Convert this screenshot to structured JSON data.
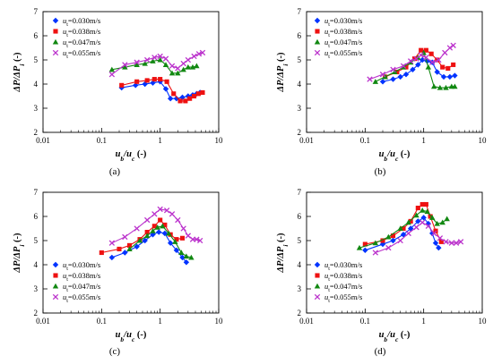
{
  "legend_labels": [
    "ut=0.030m/s",
    "ut=0.038m/s",
    "ut=0.047m/s",
    "ut=0.055m/s"
  ],
  "series_style": [
    {
      "color": "#0033ff",
      "marker": "diamond"
    },
    {
      "color": "#ee1111",
      "marker": "square"
    },
    {
      "color": "#118811",
      "marker": "triangle"
    },
    {
      "color": "#bb33cc",
      "marker": "x"
    }
  ],
  "axes": {
    "xlabel": "ub/uc (-)",
    "ylabel": "ΔP/ΔPi (-)",
    "x_scale": "log",
    "xlim": [
      0.01,
      10
    ],
    "ylim": [
      2,
      7
    ],
    "x_ticks": [
      "0.01",
      "0.1",
      "1",
      "10"
    ],
    "y_ticks": [
      "2",
      "3",
      "4",
      "5",
      "6",
      "7"
    ],
    "grid": false
  },
  "chart_data": [
    {
      "type": "line",
      "caption": "(a)",
      "legend_position": "top-left",
      "xlabel": "ub/uc (-)",
      "ylabel": "ΔP/ΔPi (-)",
      "series": [
        {
          "name": "ut=0.030m/s",
          "points": [
            [
              0.22,
              3.85
            ],
            [
              0.38,
              3.95
            ],
            [
              0.55,
              4.0
            ],
            [
              0.75,
              4.05
            ],
            [
              1.0,
              4.1
            ],
            [
              1.25,
              3.8
            ],
            [
              1.5,
              3.4
            ],
            [
              1.9,
              3.4
            ],
            [
              2.4,
              3.45
            ],
            [
              3.0,
              3.5
            ],
            [
              3.6,
              3.55
            ],
            [
              4.2,
              3.6
            ],
            [
              4.8,
              3.65
            ]
          ]
        },
        {
          "name": "ut=0.038m/s",
          "points": [
            [
              0.22,
              3.95
            ],
            [
              0.4,
              4.1
            ],
            [
              0.6,
              4.15
            ],
            [
              0.8,
              4.2
            ],
            [
              1.0,
              4.2
            ],
            [
              1.3,
              4.1
            ],
            [
              1.7,
              3.6
            ],
            [
              2.2,
              3.3
            ],
            [
              2.7,
              3.3
            ],
            [
              3.2,
              3.4
            ],
            [
              3.8,
              3.5
            ],
            [
              4.5,
              3.6
            ],
            [
              5.3,
              3.65
            ]
          ]
        },
        {
          "name": "ut=0.047m/s",
          "points": [
            [
              0.15,
              4.6
            ],
            [
              0.25,
              4.7
            ],
            [
              0.4,
              4.8
            ],
            [
              0.55,
              4.85
            ],
            [
              0.75,
              4.95
            ],
            [
              1.0,
              5.0
            ],
            [
              1.25,
              4.8
            ],
            [
              1.6,
              4.45
            ],
            [
              2.0,
              4.45
            ],
            [
              2.5,
              4.6
            ],
            [
              3.0,
              4.7
            ],
            [
              3.6,
              4.7
            ],
            [
              4.2,
              4.75
            ]
          ]
        },
        {
          "name": "ut=0.055m/s",
          "points": [
            [
              0.15,
              4.4
            ],
            [
              0.25,
              4.8
            ],
            [
              0.4,
              4.9
            ],
            [
              0.6,
              5.0
            ],
            [
              0.8,
              5.1
            ],
            [
              1.0,
              5.15
            ],
            [
              1.25,
              5.05
            ],
            [
              1.6,
              4.75
            ],
            [
              2.0,
              4.65
            ],
            [
              2.5,
              4.85
            ],
            [
              3.0,
              5.0
            ],
            [
              3.8,
              5.15
            ],
            [
              4.6,
              5.25
            ],
            [
              5.3,
              5.3
            ]
          ]
        }
      ]
    },
    {
      "type": "line",
      "caption": "(b)",
      "legend_position": "top-left",
      "xlabel": "ub/uc (-)",
      "ylabel": "ΔP/ΔPi (-)",
      "series": [
        {
          "name": "ut=0.030m/s",
          "points": [
            [
              0.2,
              4.1
            ],
            [
              0.3,
              4.2
            ],
            [
              0.4,
              4.3
            ],
            [
              0.5,
              4.4
            ],
            [
              0.65,
              4.6
            ],
            [
              0.8,
              4.8
            ],
            [
              0.95,
              5.0
            ],
            [
              1.15,
              4.95
            ],
            [
              1.4,
              4.9
            ],
            [
              1.7,
              4.5
            ],
            [
              2.2,
              4.3
            ],
            [
              2.8,
              4.3
            ],
            [
              3.4,
              4.35
            ]
          ]
        },
        {
          "name": "ut=0.038m/s",
          "points": [
            [
              0.22,
              4.3
            ],
            [
              0.35,
              4.5
            ],
            [
              0.5,
              4.7
            ],
            [
              0.7,
              5.05
            ],
            [
              0.9,
              5.4
            ],
            [
              1.1,
              5.4
            ],
            [
              1.35,
              5.25
            ],
            [
              1.7,
              5.0
            ],
            [
              2.1,
              4.7
            ],
            [
              2.6,
              4.65
            ],
            [
              3.2,
              4.8
            ]
          ]
        },
        {
          "name": "ut=0.047m/s",
          "points": [
            [
              0.15,
              4.1
            ],
            [
              0.22,
              4.3
            ],
            [
              0.32,
              4.5
            ],
            [
              0.45,
              4.7
            ],
            [
              0.6,
              4.9
            ],
            [
              0.8,
              5.1
            ],
            [
              1.0,
              5.3
            ],
            [
              1.2,
              4.7
            ],
            [
              1.5,
              3.9
            ],
            [
              1.9,
              3.85
            ],
            [
              2.4,
              3.85
            ],
            [
              3.0,
              3.9
            ],
            [
              3.4,
              3.9
            ]
          ]
        },
        {
          "name": "ut=0.055m/s",
          "points": [
            [
              0.12,
              4.2
            ],
            [
              0.2,
              4.4
            ],
            [
              0.3,
              4.6
            ],
            [
              0.45,
              4.75
            ],
            [
              0.6,
              4.95
            ],
            [
              0.75,
              5.05
            ],
            [
              0.9,
              5.2
            ],
            [
              1.1,
              5.1
            ],
            [
              1.4,
              4.9
            ],
            [
              1.8,
              5.0
            ],
            [
              2.3,
              5.3
            ],
            [
              2.8,
              5.5
            ],
            [
              3.2,
              5.6
            ]
          ]
        }
      ]
    },
    {
      "type": "line",
      "caption": "(c)",
      "legend_position": "bottom-left",
      "xlabel": "ub/uc (-)",
      "ylabel": "ΔP/ΔPi (-)",
      "series": [
        {
          "name": "ut=0.030m/s",
          "points": [
            [
              0.15,
              4.3
            ],
            [
              0.25,
              4.5
            ],
            [
              0.4,
              4.75
            ],
            [
              0.55,
              5.0
            ],
            [
              0.75,
              5.25
            ],
            [
              0.95,
              5.35
            ],
            [
              1.2,
              5.3
            ],
            [
              1.5,
              4.9
            ],
            [
              1.9,
              4.6
            ],
            [
              2.4,
              4.3
            ],
            [
              2.8,
              4.1
            ]
          ]
        },
        {
          "name": "ut=0.038m/s",
          "points": [
            [
              0.1,
              4.5
            ],
            [
              0.2,
              4.65
            ],
            [
              0.3,
              4.8
            ],
            [
              0.45,
              5.05
            ],
            [
              0.6,
              5.35
            ],
            [
              0.8,
              5.6
            ],
            [
              1.0,
              5.85
            ],
            [
              1.2,
              5.65
            ],
            [
              1.5,
              5.25
            ],
            [
              1.9,
              5.05
            ],
            [
              2.4,
              5.1
            ]
          ]
        },
        {
          "name": "ut=0.047m/s",
          "points": [
            [
              0.3,
              4.65
            ],
            [
              0.45,
              5.0
            ],
            [
              0.6,
              5.2
            ],
            [
              0.75,
              5.4
            ],
            [
              0.9,
              5.55
            ],
            [
              1.1,
              5.6
            ],
            [
              1.4,
              5.3
            ],
            [
              1.8,
              4.95
            ],
            [
              2.3,
              4.5
            ],
            [
              2.8,
              4.35
            ],
            [
              3.4,
              4.3
            ]
          ]
        },
        {
          "name": "ut=0.055m/s",
          "points": [
            [
              0.15,
              4.9
            ],
            [
              0.25,
              5.15
            ],
            [
              0.4,
              5.5
            ],
            [
              0.6,
              5.85
            ],
            [
              0.8,
              6.1
            ],
            [
              1.0,
              6.3
            ],
            [
              1.3,
              6.25
            ],
            [
              1.6,
              6.1
            ],
            [
              2.0,
              5.85
            ],
            [
              2.5,
              5.5
            ],
            [
              3.0,
              5.2
            ],
            [
              3.6,
              5.05
            ],
            [
              4.2,
              5.05
            ],
            [
              4.8,
              5.0
            ]
          ]
        }
      ]
    },
    {
      "type": "line",
      "caption": "(d)",
      "legend_position": "bottom-left",
      "xlabel": "ub/uc (-)",
      "ylabel": "ΔP/ΔPi (-)",
      "series": [
        {
          "name": "ut=0.030m/s",
          "points": [
            [
              0.1,
              4.6
            ],
            [
              0.2,
              4.85
            ],
            [
              0.3,
              5.0
            ],
            [
              0.45,
              5.25
            ],
            [
              0.6,
              5.5
            ],
            [
              0.8,
              5.8
            ],
            [
              1.0,
              5.95
            ],
            [
              1.2,
              5.7
            ],
            [
              1.4,
              5.3
            ],
            [
              1.6,
              4.9
            ],
            [
              1.8,
              4.7
            ]
          ]
        },
        {
          "name": "ut=0.038m/s",
          "points": [
            [
              0.1,
              4.85
            ],
            [
              0.2,
              5.0
            ],
            [
              0.3,
              5.2
            ],
            [
              0.45,
              5.5
            ],
            [
              0.6,
              5.8
            ],
            [
              0.8,
              6.35
            ],
            [
              0.95,
              6.5
            ],
            [
              1.1,
              6.5
            ],
            [
              1.3,
              6.0
            ],
            [
              1.6,
              5.4
            ],
            [
              2.0,
              4.95
            ]
          ]
        },
        {
          "name": "ut=0.047m/s",
          "points": [
            [
              0.08,
              4.7
            ],
            [
              0.15,
              4.9
            ],
            [
              0.25,
              5.15
            ],
            [
              0.4,
              5.5
            ],
            [
              0.55,
              5.75
            ],
            [
              0.75,
              6.05
            ],
            [
              0.95,
              6.25
            ],
            [
              1.15,
              6.2
            ],
            [
              1.4,
              5.95
            ],
            [
              1.7,
              5.7
            ],
            [
              2.1,
              5.75
            ],
            [
              2.5,
              5.9
            ]
          ]
        },
        {
          "name": "ut=0.055m/s",
          "points": [
            [
              0.15,
              4.5
            ],
            [
              0.25,
              4.7
            ],
            [
              0.4,
              5.0
            ],
            [
              0.55,
              5.3
            ],
            [
              0.75,
              5.55
            ],
            [
              0.95,
              5.75
            ],
            [
              1.2,
              5.6
            ],
            [
              1.5,
              5.3
            ],
            [
              1.9,
              5.1
            ],
            [
              2.4,
              4.95
            ],
            [
              3.0,
              4.9
            ],
            [
              3.6,
              4.9
            ],
            [
              4.3,
              4.95
            ]
          ]
        }
      ]
    }
  ]
}
